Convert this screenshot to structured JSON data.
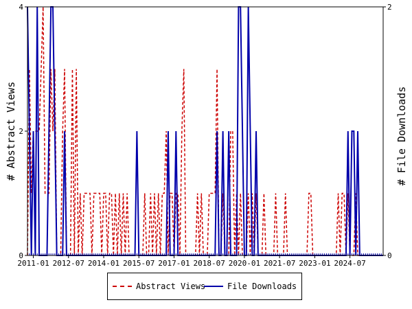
{
  "chart_data": {
    "type": "line",
    "title": "",
    "ylabel_left": "# Abstract Views",
    "ylabel_right": "# File Downloads",
    "ylim_left": [
      0,
      4
    ],
    "ylim_right": [
      0,
      2
    ],
    "yticks_left": [
      0,
      2,
      4
    ],
    "yticks_right": [
      0,
      2
    ],
    "x_start": "2010-10",
    "x_end": "2025-12",
    "xtick_labels": [
      "2011-01",
      "2012-07",
      "2014-01",
      "2015-07",
      "2017-01",
      "2018-07",
      "2020-01",
      "2021-07",
      "2023-01",
      "2024-07"
    ],
    "legend_position": "bottom-center",
    "series": [
      {
        "name": "Abstract Views",
        "axis": "left",
        "color": "#cc0000",
        "style": "dashed",
        "points": [
          [
            "2010-11",
            3
          ],
          [
            "2010-12",
            1
          ],
          [
            "2011-01",
            2
          ],
          [
            "2011-02",
            2
          ],
          [
            "2011-03",
            2
          ],
          [
            "2011-04",
            2
          ],
          [
            "2011-05",
            3
          ],
          [
            "2011-06",
            4
          ],
          [
            "2011-07",
            1
          ],
          [
            "2011-08",
            1
          ],
          [
            "2011-09",
            1
          ],
          [
            "2011-10",
            3
          ],
          [
            "2011-11",
            2
          ],
          [
            "2011-12",
            3
          ],
          [
            "2012-01",
            0
          ],
          [
            "2012-02",
            0
          ],
          [
            "2012-03",
            0
          ],
          [
            "2012-04",
            2
          ],
          [
            "2012-05",
            3
          ],
          [
            "2012-06",
            0
          ],
          [
            "2012-07",
            0
          ],
          [
            "2012-08",
            0
          ],
          [
            "2012-09",
            3
          ],
          [
            "2012-10",
            0
          ],
          [
            "2012-11",
            3
          ],
          [
            "2012-12",
            0
          ],
          [
            "2013-01",
            1
          ],
          [
            "2013-02",
            0
          ],
          [
            "2013-03",
            1
          ],
          [
            "2013-04",
            1
          ],
          [
            "2013-05",
            1
          ],
          [
            "2013-06",
            1
          ],
          [
            "2013-07",
            0
          ],
          [
            "2013-08",
            1
          ],
          [
            "2013-09",
            1
          ],
          [
            "2013-10",
            1
          ],
          [
            "2013-11",
            1
          ],
          [
            "2013-12",
            0
          ],
          [
            "2014-01",
            1
          ],
          [
            "2014-02",
            1
          ],
          [
            "2014-03",
            0
          ],
          [
            "2014-04",
            1
          ],
          [
            "2014-05",
            1
          ],
          [
            "2014-06",
            0
          ],
          [
            "2014-07",
            1
          ],
          [
            "2014-08",
            0
          ],
          [
            "2014-09",
            1
          ],
          [
            "2014-10",
            0
          ],
          [
            "2014-11",
            1
          ],
          [
            "2014-12",
            0
          ],
          [
            "2015-01",
            1
          ],
          [
            "2015-02",
            0
          ],
          [
            "2015-10",
            1
          ],
          [
            "2015-11",
            0
          ],
          [
            "2016-01",
            1
          ],
          [
            "2016-02",
            0
          ],
          [
            "2016-03",
            1
          ],
          [
            "2016-04",
            0
          ],
          [
            "2016-05",
            1
          ],
          [
            "2016-06",
            0
          ],
          [
            "2016-07",
            1
          ],
          [
            "2016-08",
            1
          ],
          [
            "2016-09",
            2
          ],
          [
            "2016-10",
            0
          ],
          [
            "2016-11",
            1
          ],
          [
            "2016-12",
            1
          ],
          [
            "2017-01",
            0
          ],
          [
            "2017-02",
            1
          ],
          [
            "2017-03",
            1
          ],
          [
            "2017-04",
            0
          ],
          [
            "2017-05",
            2
          ],
          [
            "2017-06",
            3
          ],
          [
            "2017-07",
            0
          ],
          [
            "2017-08",
            0
          ],
          [
            "2017-09",
            0
          ],
          [
            "2017-10",
            0
          ],
          [
            "2018-01",
            1
          ],
          [
            "2018-02",
            0
          ],
          [
            "2018-03",
            1
          ],
          [
            "2018-04",
            0
          ],
          [
            "2018-05",
            0
          ],
          [
            "2018-06",
            0
          ],
          [
            "2018-07",
            1
          ],
          [
            "2018-08",
            1
          ],
          [
            "2018-09",
            1
          ],
          [
            "2018-10",
            1
          ],
          [
            "2018-11",
            3
          ],
          [
            "2018-12",
            0
          ],
          [
            "2019-02",
            1
          ],
          [
            "2019-03",
            0
          ],
          [
            "2019-06",
            2
          ],
          [
            "2019-07",
            2
          ],
          [
            "2019-08",
            0
          ],
          [
            "2019-09",
            1
          ],
          [
            "2019-10",
            0
          ],
          [
            "2019-11",
            1
          ],
          [
            "2019-12",
            0
          ],
          [
            "2020-03",
            1
          ],
          [
            "2020-04",
            0
          ],
          [
            "2020-05",
            1
          ],
          [
            "2020-06",
            0
          ],
          [
            "2020-07",
            1
          ],
          [
            "2020-08",
            0
          ],
          [
            "2020-11",
            1
          ],
          [
            "2020-12",
            0
          ],
          [
            "2021-05",
            1
          ],
          [
            "2021-06",
            0
          ],
          [
            "2021-10",
            1
          ],
          [
            "2021-11",
            0
          ],
          [
            "2022-10",
            1
          ],
          [
            "2022-11",
            1
          ],
          [
            "2022-12",
            0
          ],
          [
            "2024-01",
            1
          ],
          [
            "2024-02",
            0
          ],
          [
            "2024-03",
            1
          ],
          [
            "2024-04",
            1
          ],
          [
            "2024-05",
            0
          ],
          [
            "2024-06",
            1
          ],
          [
            "2024-07",
            0
          ],
          [
            "2024-10",
            1
          ],
          [
            "2024-11",
            0
          ]
        ]
      },
      {
        "name": "File Downloads",
        "axis": "right",
        "color": "#0000aa",
        "style": "solid",
        "points": [
          [
            "2010-10",
            2
          ],
          [
            "2010-11",
            1
          ],
          [
            "2010-12",
            0
          ],
          [
            "2011-01",
            1
          ],
          [
            "2011-02",
            0
          ],
          [
            "2011-03",
            2
          ],
          [
            "2011-04",
            0
          ],
          [
            "2011-05",
            0
          ],
          [
            "2011-06",
            0
          ],
          [
            "2011-07",
            0
          ],
          [
            "2011-08",
            0
          ],
          [
            "2011-09",
            1
          ],
          [
            "2011-10",
            2
          ],
          [
            "2011-11",
            2
          ],
          [
            "2011-12",
            1
          ],
          [
            "2012-01",
            0
          ],
          [
            "2012-02",
            0
          ],
          [
            "2012-03",
            0
          ],
          [
            "2012-04",
            0
          ],
          [
            "2012-05",
            1
          ],
          [
            "2012-06",
            0
          ],
          [
            "2012-07",
            0
          ],
          [
            "2015-05",
            0
          ],
          [
            "2015-06",
            1
          ],
          [
            "2015-07",
            0
          ],
          [
            "2016-07",
            0
          ],
          [
            "2016-08",
            0
          ],
          [
            "2016-09",
            0
          ],
          [
            "2016-10",
            1
          ],
          [
            "2016-11",
            0
          ],
          [
            "2016-12",
            0
          ],
          [
            "2017-01",
            0
          ],
          [
            "2017-02",
            1
          ],
          [
            "2017-03",
            0
          ],
          [
            "2018-10",
            0
          ],
          [
            "2018-11",
            1
          ],
          [
            "2018-12",
            0
          ],
          [
            "2019-01",
            0
          ],
          [
            "2019-02",
            1
          ],
          [
            "2019-03",
            0
          ],
          [
            "2019-05",
            1
          ],
          [
            "2019-06",
            0
          ],
          [
            "2019-09",
            0
          ],
          [
            "2019-10",
            2
          ],
          [
            "2019-11",
            2
          ],
          [
            "2019-12",
            1
          ],
          [
            "2020-01",
            0
          ],
          [
            "2020-02",
            0
          ],
          [
            "2020-03",
            2
          ],
          [
            "2020-04",
            1
          ],
          [
            "2020-05",
            0
          ],
          [
            "2020-06",
            0
          ],
          [
            "2020-07",
            1
          ],
          [
            "2020-08",
            0
          ],
          [
            "2024-05",
            0
          ],
          [
            "2024-06",
            1
          ],
          [
            "2024-07",
            0
          ],
          [
            "2024-08",
            1
          ],
          [
            "2024-09",
            1
          ],
          [
            "2024-10",
            0
          ],
          [
            "2024-11",
            1
          ],
          [
            "2024-12",
            0
          ]
        ]
      }
    ]
  }
}
